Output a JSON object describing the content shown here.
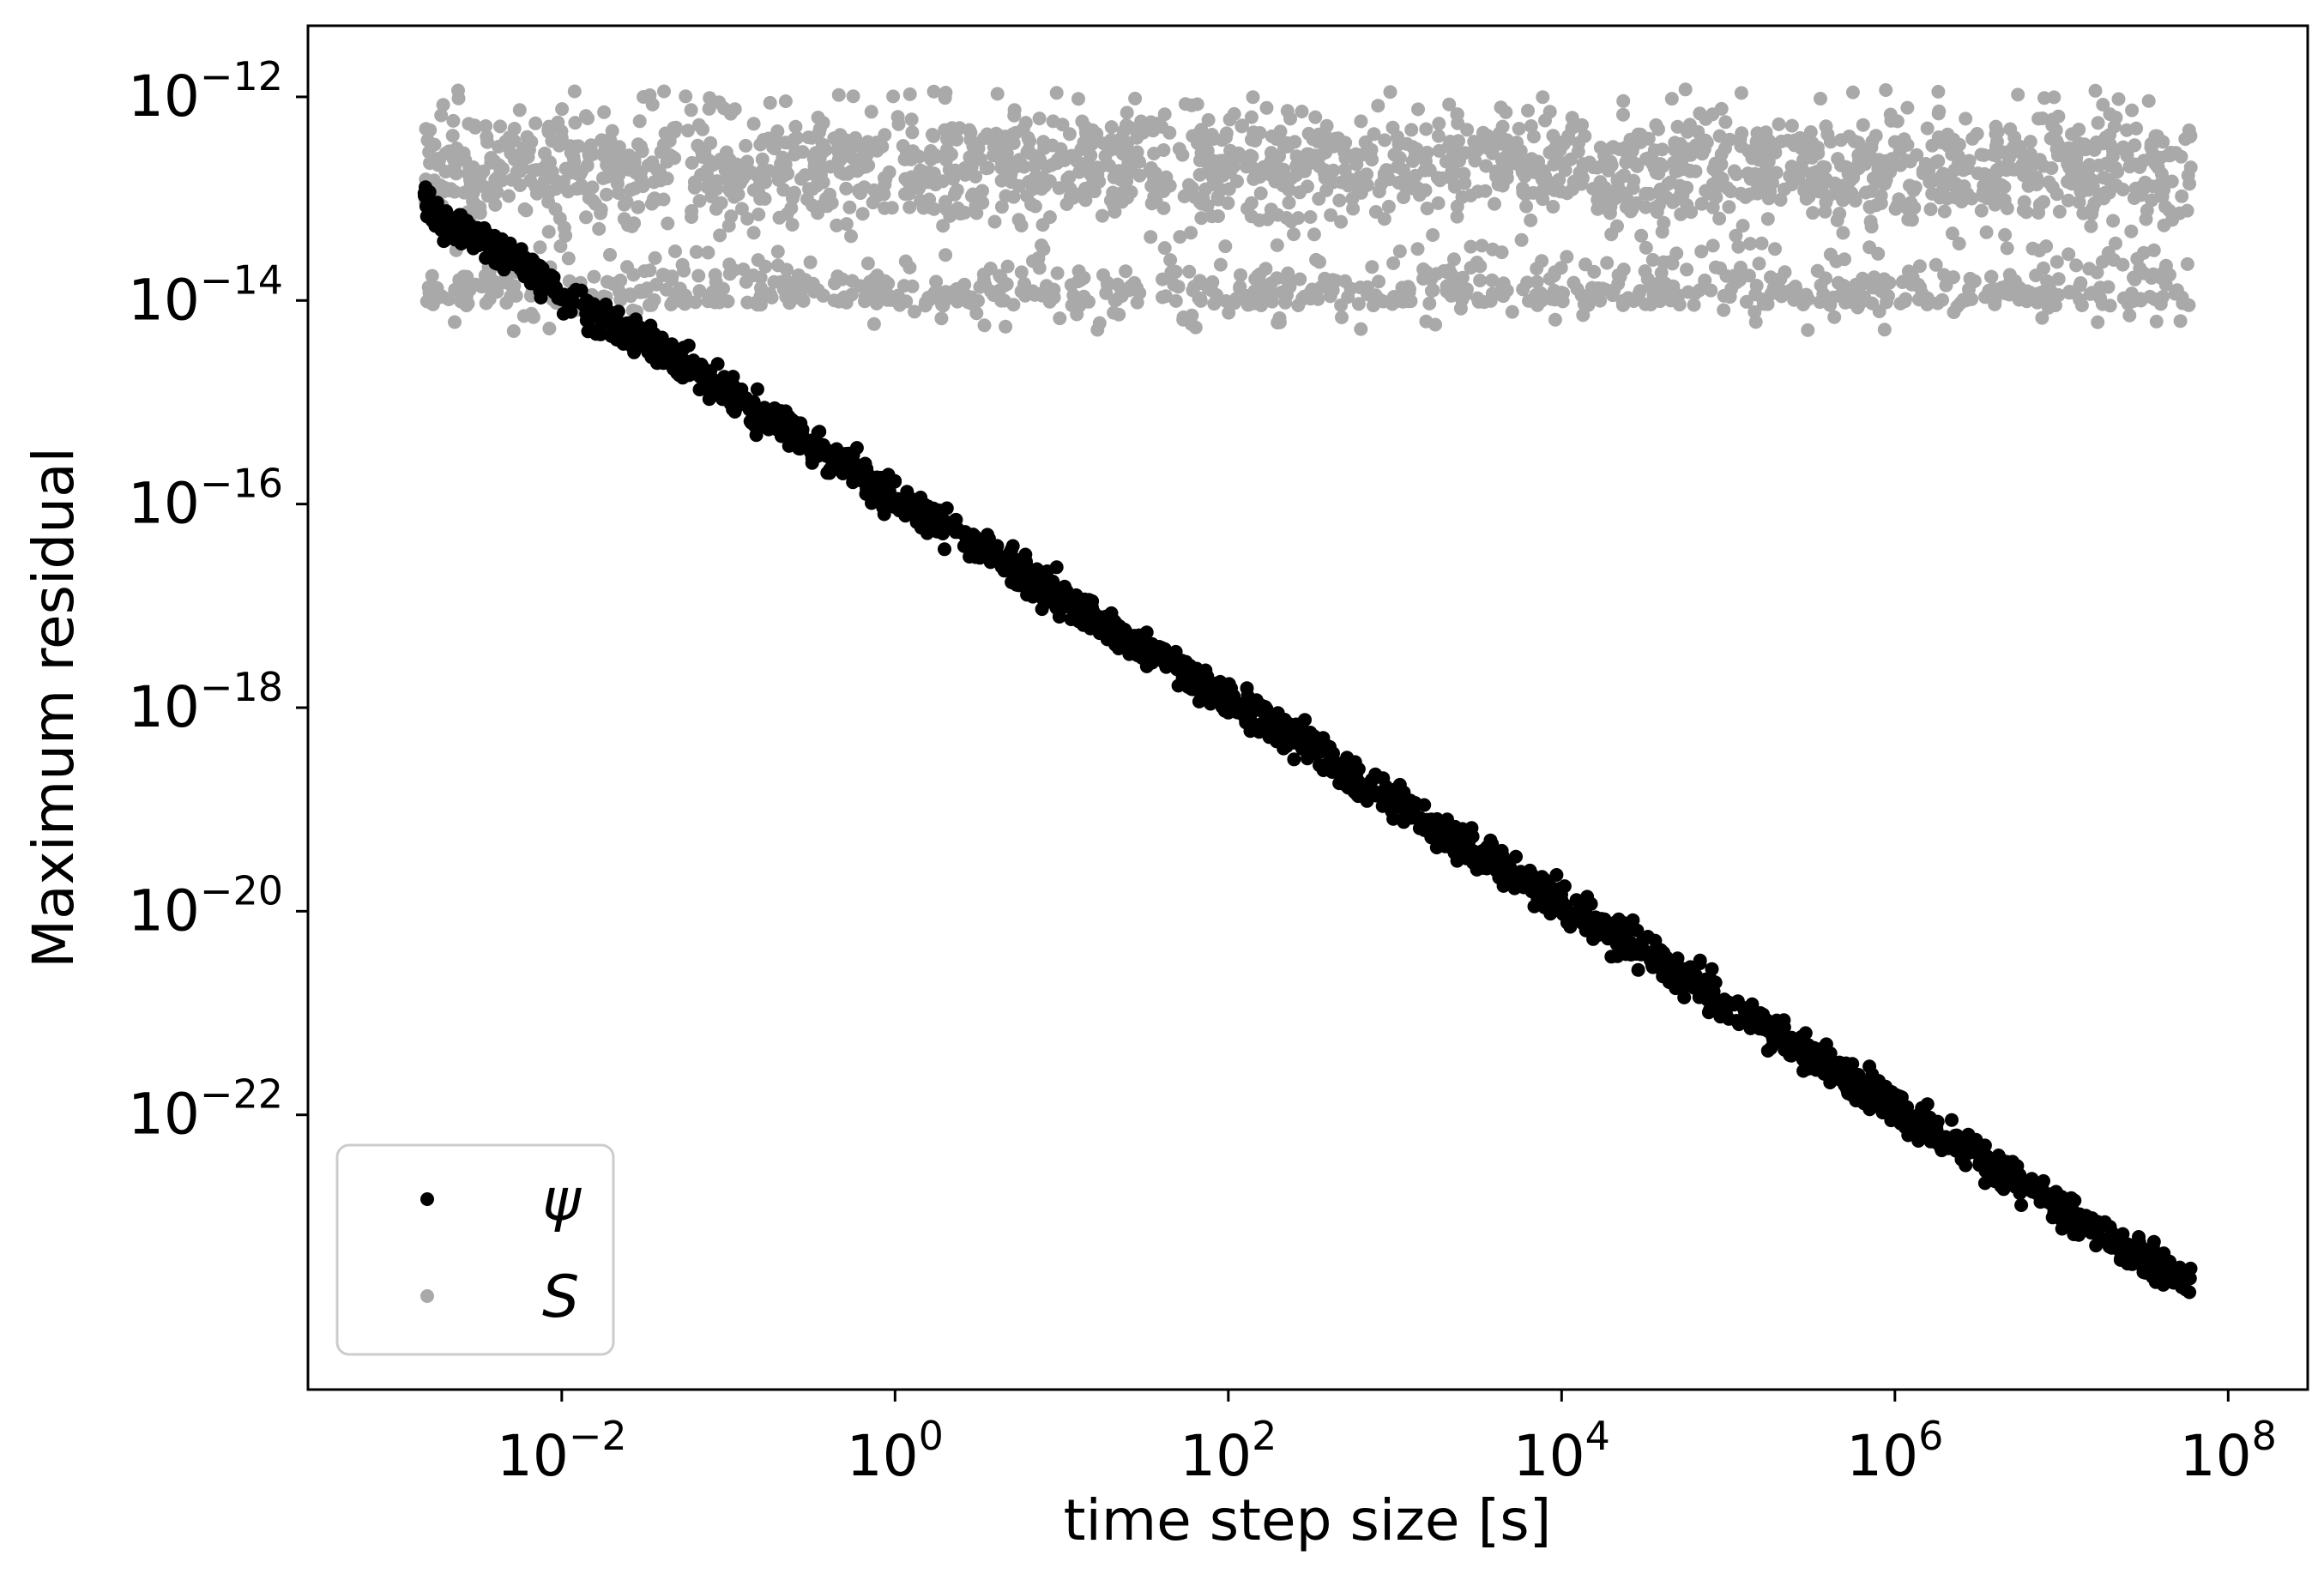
{
  "chart_data": {
    "type": "scatter",
    "xlabel": "time step size [s]",
    "ylabel": "Maximum residual",
    "xscale": "log",
    "yscale": "log",
    "xlim": [
      0.0003,
      300000000.0
    ],
    "ylim": [
      2e-25,
      5e-12
    ],
    "x_ticks": [
      {
        "value": 0.01,
        "base": "10",
        "exp": "−2"
      },
      {
        "value": 1,
        "base": "10",
        "exp": "0"
      },
      {
        "value": 100,
        "base": "10",
        "exp": "2"
      },
      {
        "value": 10000,
        "base": "10",
        "exp": "4"
      },
      {
        "value": 1000000,
        "base": "10",
        "exp": "6"
      },
      {
        "value": 100000000,
        "base": "10",
        "exp": "8"
      }
    ],
    "y_ticks": [
      {
        "value": 1e-12,
        "base": "10",
        "exp": "−12"
      },
      {
        "value": 1e-14,
        "base": "10",
        "exp": "−14"
      },
      {
        "value": 1e-16,
        "base": "10",
        "exp": "−16"
      },
      {
        "value": 1e-18,
        "base": "10",
        "exp": "−18"
      },
      {
        "value": 1e-20,
        "base": "10",
        "exp": "−20"
      },
      {
        "value": 1e-22,
        "base": "10",
        "exp": "−22"
      }
    ],
    "grid": false,
    "legend_position": "lower-left",
    "series": [
      {
        "name": "ψ",
        "color": "#000000",
        "x_range": [
          0.0015,
          60000000.0
        ],
        "points": [
          [
            0.0015,
            1.1e-13
          ],
          [
            0.002,
            6e-14
          ],
          [
            0.003,
            4.5e-14
          ],
          [
            0.005,
            2.5e-14
          ],
          [
            0.008,
            1.5e-14
          ],
          [
            0.01,
            1.1e-14
          ],
          [
            0.02,
            6e-15
          ],
          [
            0.05,
            2.5e-15
          ],
          [
            0.1,
            1.2e-15
          ],
          [
            0.2,
            6e-16
          ],
          [
            0.5,
            2.5e-16
          ],
          [
            1,
            1.1e-16
          ],
          [
            2,
            6e-17
          ],
          [
            5,
            2.5e-17
          ],
          [
            10,
            1.2e-17
          ],
          [
            20,
            6e-18
          ],
          [
            50,
            2.6e-18
          ],
          [
            100,
            1.2e-18
          ],
          [
            200,
            6e-19
          ],
          [
            500,
            2.5e-19
          ],
          [
            1000,
            1.2e-19
          ],
          [
            2000,
            6e-20
          ],
          [
            5000,
            2.5e-20
          ],
          [
            10000,
            1.2e-20
          ],
          [
            20000,
            6e-21
          ],
          [
            50000,
            2.5e-21
          ],
          [
            100000,
            1.2e-21
          ],
          [
            200000,
            6e-22
          ],
          [
            500000,
            2.4e-22
          ],
          [
            1000000,
            1.2e-22
          ],
          [
            2000000,
            6e-23
          ],
          [
            5000000,
            2.5e-23
          ],
          [
            10000000,
            1.2e-23
          ],
          [
            20000000,
            6e-24
          ],
          [
            60000000,
            2.2e-24
          ]
        ]
      },
      {
        "name": "S",
        "color": "#a9a9a9",
        "x_range": [
          0.0015,
          60000000.0
        ],
        "y_range": [
          5e-15,
          1.2e-12
        ],
        "typical": 2e-13
      }
    ]
  }
}
